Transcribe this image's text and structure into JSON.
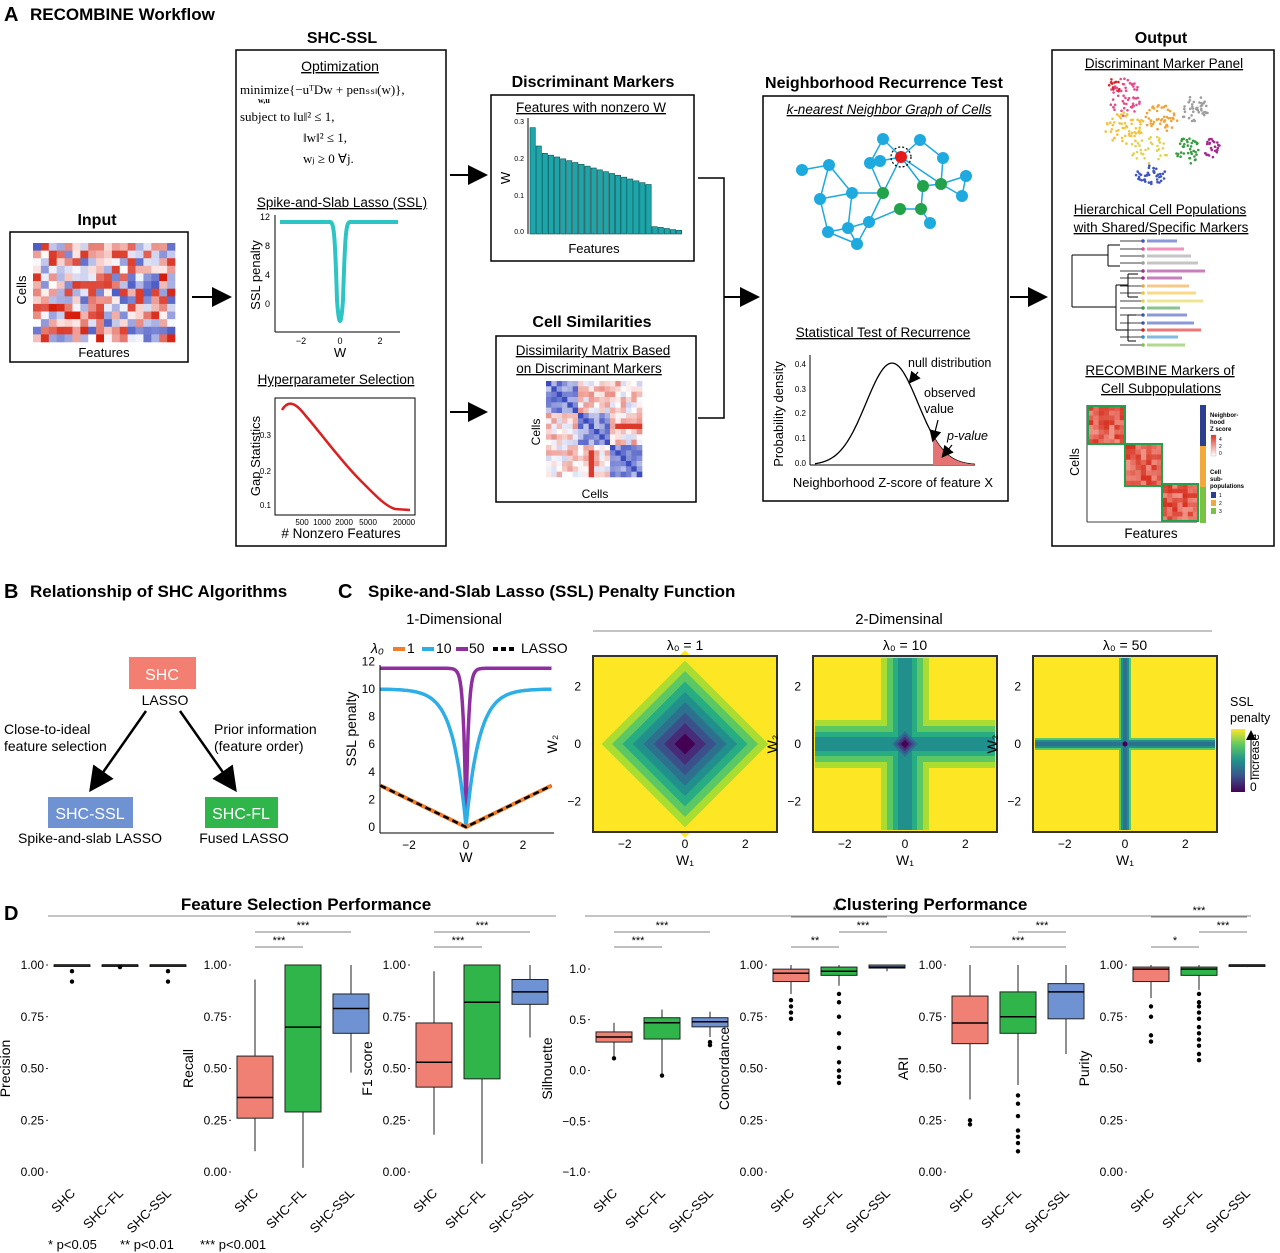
{
  "panelA": {
    "letter": "A",
    "title": "RECOMBINE Workflow",
    "input": {
      "title": "Input",
      "ylabel": "Cells",
      "xlabel": "Features"
    },
    "shc_ssl": {
      "title": "SHC-SSL",
      "opt_title": "Optimization",
      "opt_lines": [
        "minimize{−uᵀDw + penₛₛₗ(w)},",
        "subject to ‖u‖² ≤ 1,",
        "‖w‖² ≤ 1,",
        "wⱼ ≥ 0 ∀j."
      ],
      "opt_sub": "w,u",
      "ssl_title": "Spike-and-Slab Lasso (SSL)",
      "ssl_ylabel": "SSL penalty",
      "ssl_xlabel": "W",
      "ssl_yticks": [
        "12",
        "8",
        "4",
        "0"
      ],
      "ssl_xticks": [
        "−2",
        "0",
        "2"
      ],
      "hyper_title": "Hyperparameter Selection",
      "hyper_ylabel": "Gap Statistics",
      "hyper_xlabel": "# Nonzero Features",
      "hyper_yticks": [
        "0.3",
        "0.2",
        "0.1"
      ],
      "hyper_xticks": [
        "500",
        "1000",
        "2000",
        "5000",
        "20000"
      ]
    },
    "discriminant": {
      "title": "Discriminant Markers",
      "subtitle": "Features with nonzero W",
      "ylabel": "W",
      "xlabel": "Features",
      "yticks": [
        "0.3",
        "0.2",
        "0.1",
        "0.0"
      ]
    },
    "similarity": {
      "title": "Cell Similarities",
      "subtitle1": "Dissimilarity Matrix Based",
      "subtitle2": "on Discriminant Markers",
      "ylabel": "Cells",
      "xlabel": "Cells"
    },
    "nrt": {
      "title": "Neighborhood Recurrence Test",
      "graph_title": "k-nearest Neighbor Graph of Cells",
      "stat_title": "Statistical Test of Recurrence",
      "ylabel": "Probability density",
      "xlabel": "Neighborhood Z-score of feature X",
      "yticks": [
        "0.4",
        "0.3",
        "0.2",
        "0.1",
        "0.0"
      ],
      "ann_null": "null distribution",
      "ann_obs1": "observed",
      "ann_obs2": "value",
      "ann_p": "p-value"
    },
    "output": {
      "title": "Output",
      "panel_title": "Discriminant Marker Panel",
      "hier_title1": "Hierarchical Cell Populations",
      "hier_title2": "with Shared/Specific Markers",
      "markers_title1": "RECOMBINE Markers of",
      "markers_title2": "Cell Subpopulations",
      "ylabel": "Cells",
      "xlabel": "Features",
      "legend_z1": "Neighbor-",
      "legend_z2": "hood",
      "legend_z3": "Z score",
      "legend_z_ticks": [
        "4",
        "2",
        "0"
      ],
      "legend_pop1": "Cell",
      "legend_pop2": "sub-",
      "legend_pop3": "populations",
      "legend_pops": [
        "1",
        "2",
        "3"
      ]
    }
  },
  "panelB": {
    "letter": "B",
    "title": "Relationship of SHC Algorithms",
    "root_label": "SHC",
    "root_sub": "LASSO",
    "left_edge1": "Close-to-ideal",
    "left_edge2": "feature selection",
    "right_edge1": "Prior information",
    "right_edge2": "(feature order)",
    "left_node": "SHC-SSL",
    "left_sub": "Spike-and-slab LASSO",
    "right_node": "SHC-FL",
    "right_sub": "Fused LASSO"
  },
  "panelC": {
    "letter": "C",
    "title": "Spike-and-Slab Lasso (SSL) Penalty Function",
    "one_dim": "1-Dimensional",
    "two_dim": "2-Dimensinal",
    "legend_lambda": "λ₀",
    "legend_items": [
      "1",
      "10",
      "50",
      "LASSO"
    ],
    "ylabel": "SSL penalty",
    "xlabel": "W",
    "yticks": [
      "12",
      "10",
      "8",
      "6",
      "4",
      "2",
      "0"
    ],
    "xticks": [
      "−2",
      "0",
      "2"
    ],
    "heat_titles": [
      "λ₀ = 1",
      "λ₀ = 10",
      "λ₀ = 50"
    ],
    "heat_ylabel": "W₂",
    "heat_xlabel": "W₁",
    "heat_ticks": [
      "2",
      "0",
      "−2"
    ],
    "heat_xticks": [
      "−2",
      "0",
      "2"
    ],
    "legend_title1": "SSL",
    "legend_title2": "penalty",
    "legend_increase": "Increase",
    "legend_zero": "0"
  },
  "panelD": {
    "letter": "D",
    "fs_title": "Feature Selection Performance",
    "cl_title": "Clustering Performance",
    "groups": [
      "SHC",
      "SHC−FL",
      "SHC-SSL"
    ],
    "footnote": [
      "* p<0.05",
      "** p<0.01",
      "*** p<0.001"
    ],
    "colors": {
      "SHC": "#f07f74",
      "SHC-FL": "#2fb54a",
      "SHC-SSL": "#6f92d2"
    }
  },
  "chart_data": [
    {
      "type": "box",
      "ylabel": "Precision",
      "categories": [
        "SHC",
        "SHC-FL",
        "SHC-SSL"
      ],
      "ylim": [
        0,
        1
      ],
      "yticks": [
        "1.00",
        "0.75",
        "0.50",
        "0.25",
        "0.00"
      ],
      "boxes": [
        {
          "median": 1.0,
          "q1": 1.0,
          "q3": 1.0,
          "min": 1.0,
          "max": 1.0,
          "outliers": [
            0.97,
            0.92
          ]
        },
        {
          "median": 1.0,
          "q1": 1.0,
          "q3": 1.0,
          "min": 1.0,
          "max": 1.0,
          "outliers": [
            0.99
          ]
        },
        {
          "median": 1.0,
          "q1": 1.0,
          "q3": 1.0,
          "min": 1.0,
          "max": 1.0,
          "outliers": [
            0.97,
            0.92
          ]
        }
      ],
      "sig": []
    },
    {
      "type": "box",
      "ylabel": "Recall",
      "categories": [
        "SHC",
        "SHC-FL",
        "SHC-SSL"
      ],
      "ylim": [
        0,
        1
      ],
      "yticks": [
        "1.00",
        "0.75",
        "0.50",
        "0.25",
        "0.00"
      ],
      "boxes": [
        {
          "median": 0.36,
          "q1": 0.26,
          "q3": 0.56,
          "min": 0.1,
          "max": 0.93,
          "outliers": []
        },
        {
          "median": 0.7,
          "q1": 0.29,
          "q3": 1.0,
          "min": 0.02,
          "max": 1.0,
          "outliers": []
        },
        {
          "median": 0.79,
          "q1": 0.67,
          "q3": 0.86,
          "min": 0.48,
          "max": 1.0,
          "outliers": []
        }
      ],
      "sig": [
        {
          "from": 0,
          "to": 1,
          "label": "***"
        },
        {
          "from": 0,
          "to": 2,
          "label": "***"
        }
      ]
    },
    {
      "type": "box",
      "ylabel": "F1 score",
      "categories": [
        "SHC",
        "SHC-FL",
        "SHC-SSL"
      ],
      "ylim": [
        0,
        1
      ],
      "yticks": [
        "1.00",
        "0.75",
        "0.50",
        "0.25",
        "0.00"
      ],
      "boxes": [
        {
          "median": 0.53,
          "q1": 0.41,
          "q3": 0.72,
          "min": 0.18,
          "max": 0.97,
          "outliers": []
        },
        {
          "median": 0.82,
          "q1": 0.45,
          "q3": 1.0,
          "min": 0.04,
          "max": 1.0,
          "outliers": []
        },
        {
          "median": 0.87,
          "q1": 0.81,
          "q3": 0.93,
          "min": 0.65,
          "max": 1.0,
          "outliers": []
        }
      ],
      "sig": [
        {
          "from": 0,
          "to": 1,
          "label": "***"
        },
        {
          "from": 0,
          "to": 2,
          "label": "***"
        }
      ]
    },
    {
      "type": "box",
      "ylabel": "Silhouette",
      "categories": [
        "SHC",
        "SHC-FL",
        "SHC-SSL"
      ],
      "ylim": [
        -1,
        1
      ],
      "yticks": [
        "1.0",
        "0.5",
        "0.0",
        "−0.5",
        "−1.0"
      ],
      "boxes": [
        {
          "median": 0.33,
          "q1": 0.28,
          "q3": 0.38,
          "min": 0.13,
          "max": 0.47,
          "outliers": [
            0.12
          ]
        },
        {
          "median": 0.47,
          "q1": 0.31,
          "q3": 0.52,
          "min": -0.03,
          "max": 0.6,
          "outliers": [
            -0.05
          ]
        },
        {
          "median": 0.48,
          "q1": 0.43,
          "q3": 0.52,
          "min": 0.33,
          "max": 0.58,
          "outliers": [
            0.28,
            0.25
          ]
        }
      ],
      "sig": [
        {
          "from": 0,
          "to": 1,
          "label": "***"
        },
        {
          "from": 0,
          "to": 2,
          "label": "***"
        }
      ]
    },
    {
      "type": "box",
      "ylabel": "Concordance",
      "categories": [
        "SHC",
        "SHC-FL",
        "SHC-SSL"
      ],
      "ylim": [
        0,
        1
      ],
      "yticks": [
        "1.00",
        "0.75",
        "0.50",
        "0.25",
        "0.00"
      ],
      "boxes": [
        {
          "median": 0.96,
          "q1": 0.92,
          "q3": 0.98,
          "min": 0.86,
          "max": 1.0,
          "outliers": [
            0.83,
            0.8,
            0.77,
            0.74
          ]
        },
        {
          "median": 0.97,
          "q1": 0.95,
          "q3": 0.99,
          "min": 0.9,
          "max": 1.0,
          "outliers": [
            0.86,
            0.82,
            0.75,
            0.67,
            0.6,
            0.53,
            0.49,
            0.46,
            0.43
          ]
        },
        {
          "median": 0.99,
          "q1": 0.985,
          "q3": 1.0,
          "min": 0.97,
          "max": 1.0,
          "outliers": []
        }
      ],
      "sig": [
        {
          "from": 0,
          "to": 1,
          "label": "**"
        },
        {
          "from": 1,
          "to": 2,
          "label": "***"
        },
        {
          "from": 0,
          "to": 2,
          "label": "***"
        }
      ]
    },
    {
      "type": "box",
      "ylabel": "ARI",
      "categories": [
        "SHC",
        "SHC-FL",
        "SHC-SSL"
      ],
      "ylim": [
        0,
        1
      ],
      "yticks": [
        "1.00",
        "0.75",
        "0.50",
        "0.25",
        "0.00"
      ],
      "boxes": [
        {
          "median": 0.72,
          "q1": 0.62,
          "q3": 0.85,
          "min": 0.35,
          "max": 1.0,
          "outliers": [
            0.25,
            0.23
          ]
        },
        {
          "median": 0.75,
          "q1": 0.67,
          "q3": 0.87,
          "min": 0.42,
          "max": 1.0,
          "outliers": [
            0.37,
            0.33,
            0.27,
            0.2,
            0.17,
            0.14,
            0.1
          ]
        },
        {
          "median": 0.87,
          "q1": 0.74,
          "q3": 0.91,
          "min": 0.57,
          "max": 1.0,
          "outliers": []
        }
      ],
      "sig": [
        {
          "from": 0,
          "to": 2,
          "label": "***"
        },
        {
          "from": 1,
          "to": 2,
          "label": "***"
        }
      ]
    },
    {
      "type": "box",
      "ylabel": "Purity",
      "categories": [
        "SHC",
        "SHC-FL",
        "SHC-SSL"
      ],
      "ylim": [
        0,
        1
      ],
      "yticks": [
        "1.00",
        "0.75",
        "0.50",
        "0.25",
        "0.00"
      ],
      "boxes": [
        {
          "median": 0.98,
          "q1": 0.92,
          "q3": 0.99,
          "min": 0.84,
          "max": 1.0,
          "outliers": [
            0.8,
            0.75,
            0.66,
            0.63
          ]
        },
        {
          "median": 0.98,
          "q1": 0.95,
          "q3": 0.99,
          "min": 0.88,
          "max": 1.0,
          "outliers": [
            0.86,
            0.82,
            0.8,
            0.77,
            0.74,
            0.7,
            0.67,
            0.64,
            0.61,
            0.57,
            0.54
          ]
        },
        {
          "median": 1.0,
          "q1": 0.995,
          "q3": 1.0,
          "min": 0.99,
          "max": 1.0,
          "outliers": []
        }
      ],
      "sig": [
        {
          "from": 0,
          "to": 1,
          "label": "*"
        },
        {
          "from": 1,
          "to": 2,
          "label": "***"
        },
        {
          "from": 0,
          "to": 2,
          "label": "***"
        }
      ]
    }
  ]
}
